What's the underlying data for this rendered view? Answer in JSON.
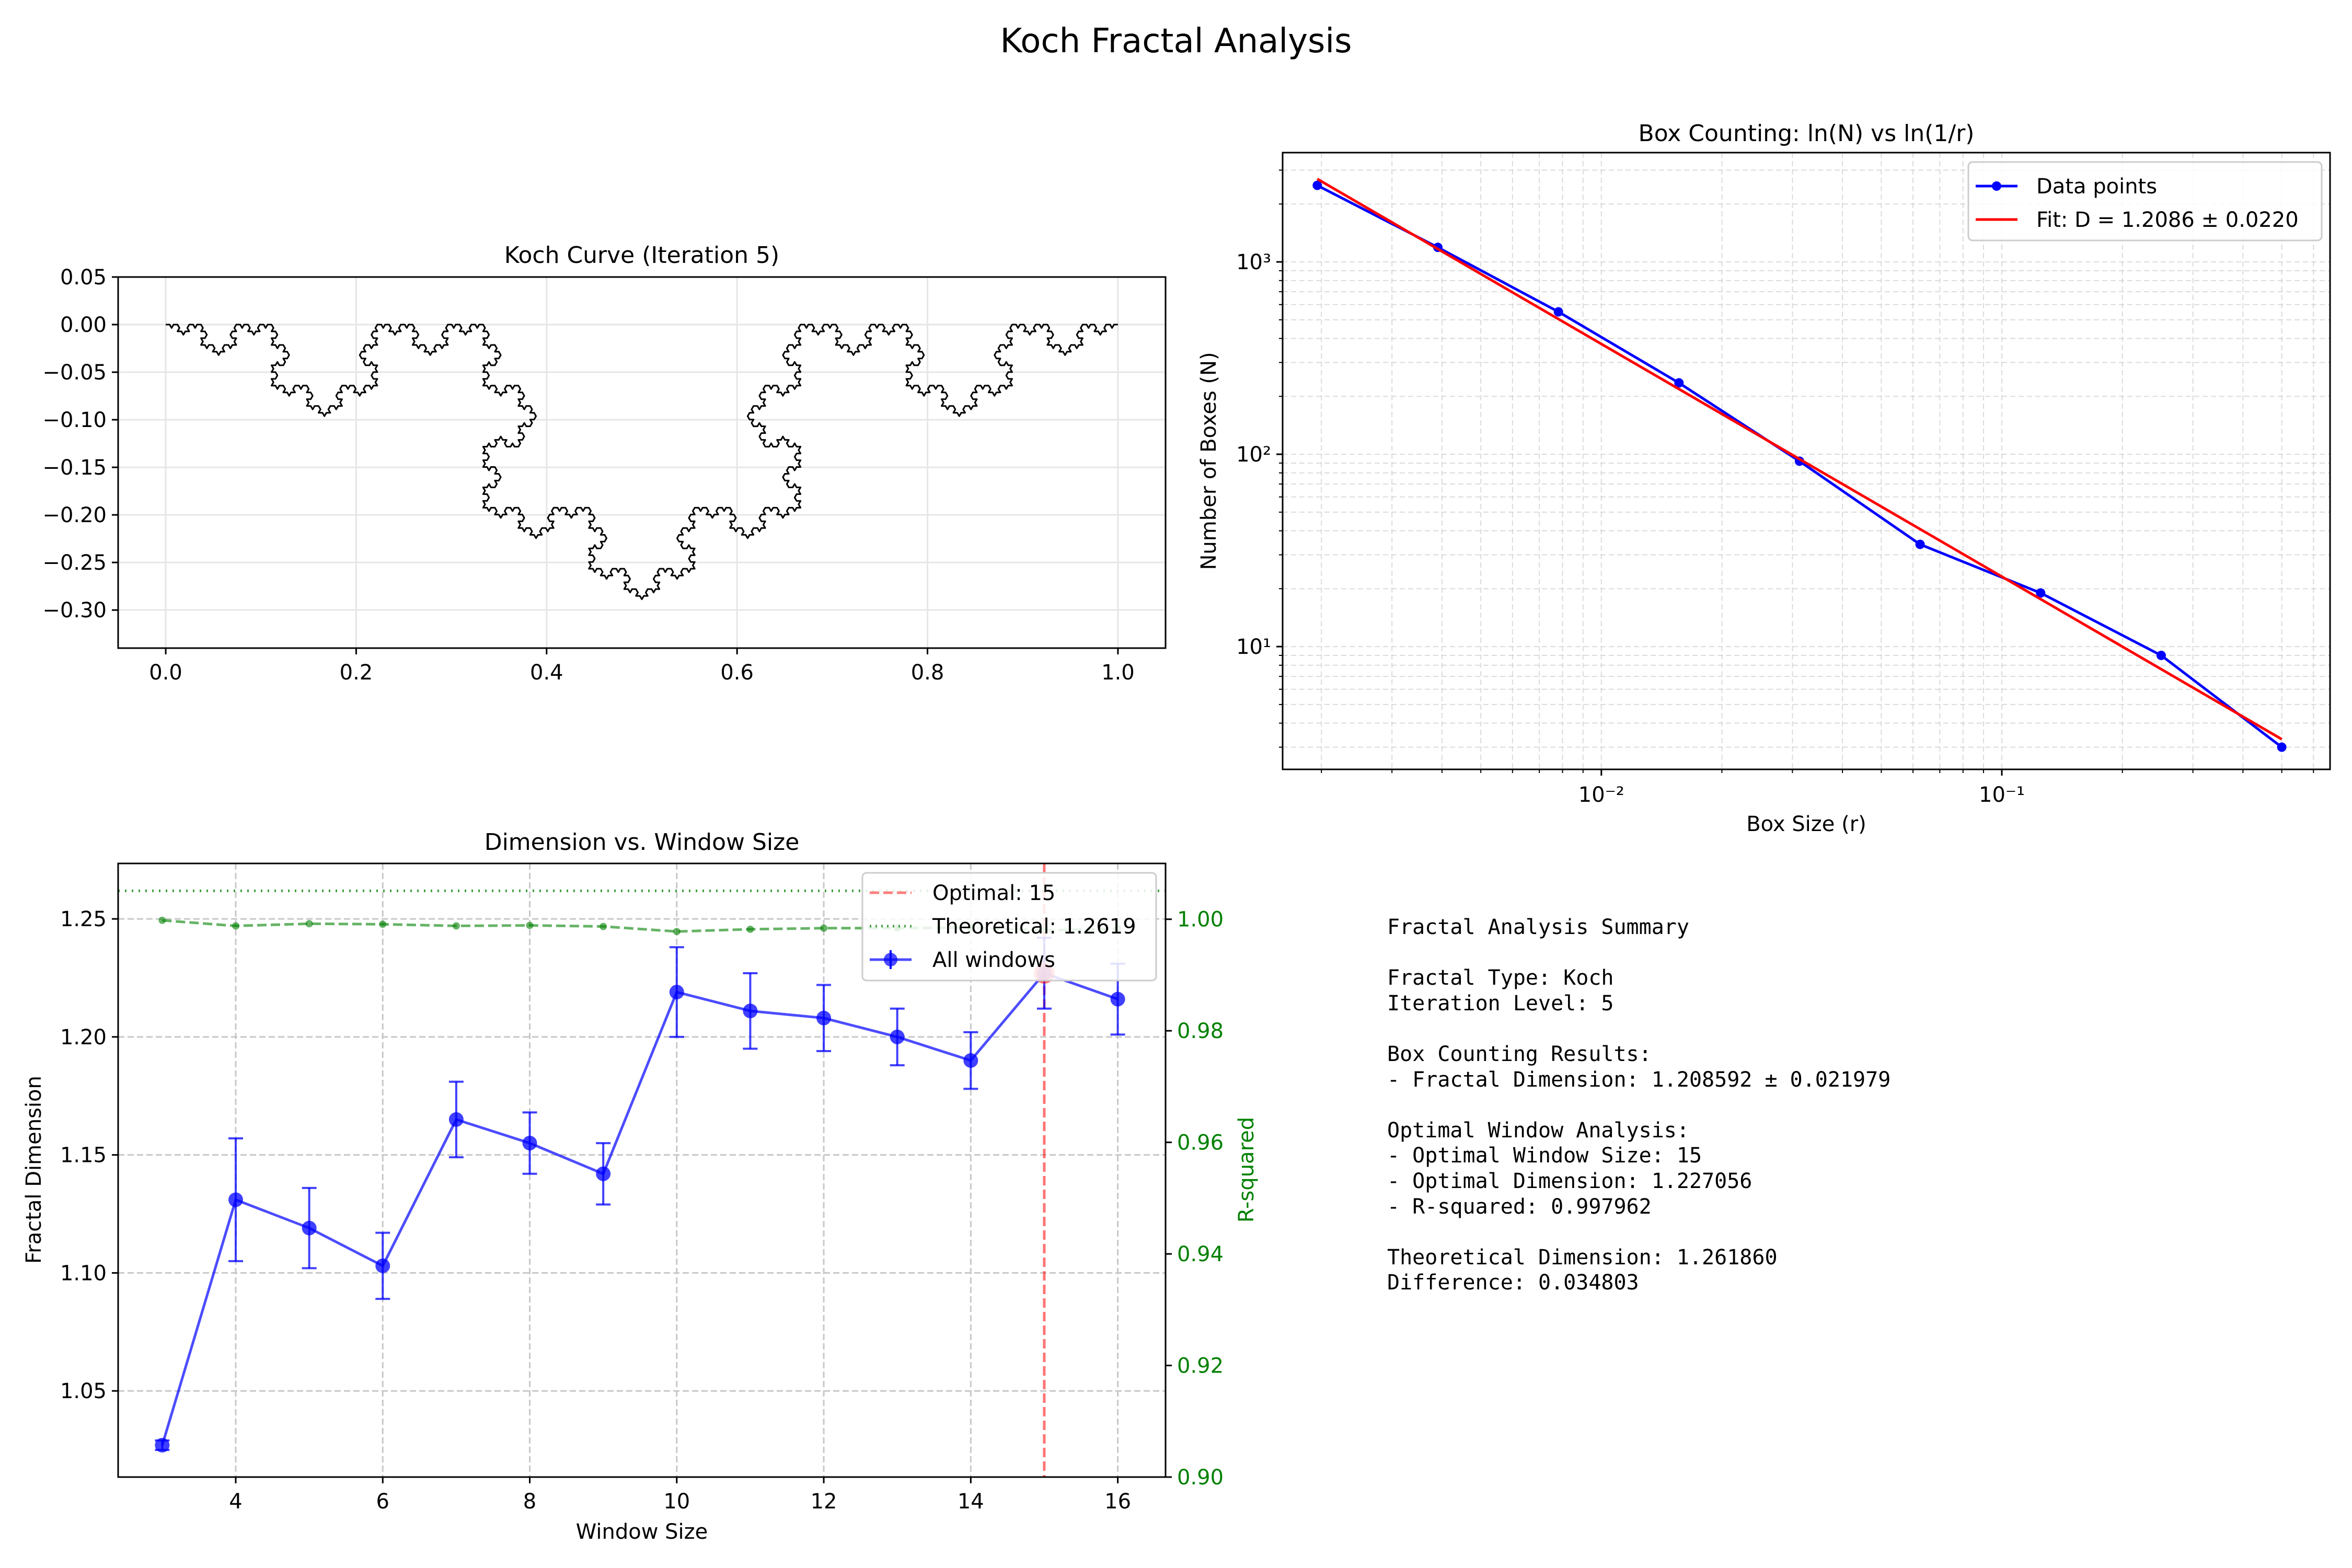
{
  "suptitle": "Koch Fractal Analysis",
  "colors": {
    "blue": "#0000ff",
    "red": "#ff0000",
    "green": "#008000",
    "black": "#000000",
    "grid": "#cccccc"
  },
  "chart_data": [
    {
      "type": "line",
      "title": "Koch Curve (Iteration 5)",
      "xlabel": "",
      "ylabel": "",
      "xlim": [
        -0.05,
        1.05
      ],
      "ylim": [
        -0.34,
        0.05
      ],
      "xticks": [
        0.0,
        0.2,
        0.4,
        0.6,
        0.8,
        1.0
      ],
      "xtick_labels": [
        "0.0",
        "0.2",
        "0.4",
        "0.6",
        "0.8",
        "1.0"
      ],
      "yticks": [
        0.05,
        0.0,
        -0.05,
        -0.1,
        -0.15,
        -0.2,
        -0.25,
        -0.3
      ],
      "ytick_labels": [
        "0.05",
        "0.00",
        "−0.05",
        "−0.10",
        "−0.15",
        "−0.20",
        "−0.25",
        "−0.30"
      ],
      "grid": true,
      "curve": {
        "iteration": 5,
        "start": [
          0,
          0
        ],
        "end": [
          1,
          0
        ],
        "min_y": -0.2887,
        "color": "#000000"
      }
    },
    {
      "type": "line",
      "title": "Box Counting: ln(N) vs ln(1/r)",
      "xlabel": "Box Size (r)",
      "ylabel": "Number of Boxes (N)",
      "xscale": "log",
      "yscale": "log",
      "xlim": [
        0.0016,
        0.66
      ],
      "ylim": [
        2.3,
        3700
      ],
      "xticks": [
        0.01,
        0.1
      ],
      "xtick_labels": [
        "10⁻²",
        "10⁻¹"
      ],
      "yticks": [
        10,
        100,
        1000
      ],
      "ytick_labels": [
        "10¹",
        "10²",
        "10³"
      ],
      "grid": "both",
      "legend_position": "upper right",
      "series": [
        {
          "name": "Data points",
          "color": "#0000ff",
          "marker": "circle",
          "x": [
            0.001953,
            0.003906,
            0.007813,
            0.015625,
            0.03125,
            0.0625,
            0.125,
            0.25,
            0.5
          ],
          "y": [
            2500,
            1190,
            550,
            235,
            92,
            34,
            19,
            9,
            3
          ]
        },
        {
          "name": "Fit: D = 1.2086 ± 0.0220",
          "color": "#ff0000",
          "marker": "none",
          "x": [
            0.001953,
            0.5
          ],
          "y": [
            2700,
            3.3
          ]
        }
      ]
    },
    {
      "type": "line",
      "title": "Dimension vs. Window Size",
      "xlabel": "Window Size",
      "ylabel": "Fractal Dimension",
      "ylabel_right": "R-squared",
      "xlim": [
        2.4,
        16.65
      ],
      "ylim": [
        1.0135,
        1.2735
      ],
      "ylim_right": [
        0.9,
        1.01
      ],
      "xticks": [
        4,
        6,
        8,
        10,
        12,
        14,
        16
      ],
      "xtick_labels": [
        "4",
        "6",
        "8",
        "10",
        "12",
        "14",
        "16"
      ],
      "yticks": [
        1.05,
        1.1,
        1.15,
        1.2,
        1.25
      ],
      "ytick_labels": [
        "1.05",
        "1.10",
        "1.15",
        "1.20",
        "1.25"
      ],
      "yticks_right": [
        0.9,
        0.92,
        0.94,
        0.96,
        0.98,
        1.0
      ],
      "ytick_labels_right": [
        "0.90",
        "0.92",
        "0.94",
        "0.96",
        "0.98",
        "1.00"
      ],
      "grid": true,
      "legend_position": "upper right",
      "series": [
        {
          "name": "All windows",
          "color": "#0000ff",
          "marker": "circle",
          "x": [
            3,
            4,
            5,
            6,
            7,
            8,
            9,
            10,
            11,
            12,
            13,
            14,
            15,
            16
          ],
          "y": [
            1.027,
            1.131,
            1.119,
            1.103,
            1.165,
            1.155,
            1.142,
            1.219,
            1.211,
            1.208,
            1.2,
            1.19,
            1.227,
            1.216
          ],
          "err": [
            0.002,
            0.026,
            0.017,
            0.014,
            0.016,
            0.013,
            0.013,
            0.019,
            0.016,
            0.014,
            0.012,
            0.012,
            0.015,
            0.015
          ]
        },
        {
          "name": "R-squared",
          "color": "#008000",
          "axis": "right",
          "style": "dashed",
          "marker": "circle",
          "x": [
            3,
            4,
            5,
            6,
            7,
            8,
            9,
            10,
            11,
            12,
            13,
            14,
            15,
            16
          ],
          "y": [
            0.9998,
            0.9988,
            0.9992,
            0.9991,
            0.9988,
            0.9989,
            0.9987,
            0.9978,
            0.9982,
            0.9984,
            0.9984,
            0.9985,
            0.998,
            0.9983
          ]
        }
      ],
      "reference_lines": [
        {
          "name": "Optimal: 15",
          "orientation": "vertical",
          "value": 15,
          "color": "#ff0000",
          "style": "dashed"
        },
        {
          "name": "Theoretical: 1.2619",
          "orientation": "horizontal",
          "value": 1.2619,
          "color": "#008000",
          "style": "dotted"
        }
      ],
      "highlight": {
        "x": 15,
        "y": 1.227,
        "color": "#ff0000"
      }
    }
  ],
  "summary": [
    "Fractal Analysis Summary",
    "",
    "Fractal Type: Koch",
    "Iteration Level: 5",
    "",
    "Box Counting Results:",
    "- Fractal Dimension: 1.208592 ± 0.021979",
    "",
    "Optimal Window Analysis:",
    "- Optimal Window Size: 15",
    "- Optimal Dimension: 1.227056",
    "- R-squared: 0.997962",
    "",
    "Theoretical Dimension: 1.261860",
    "Difference: 0.034803"
  ]
}
